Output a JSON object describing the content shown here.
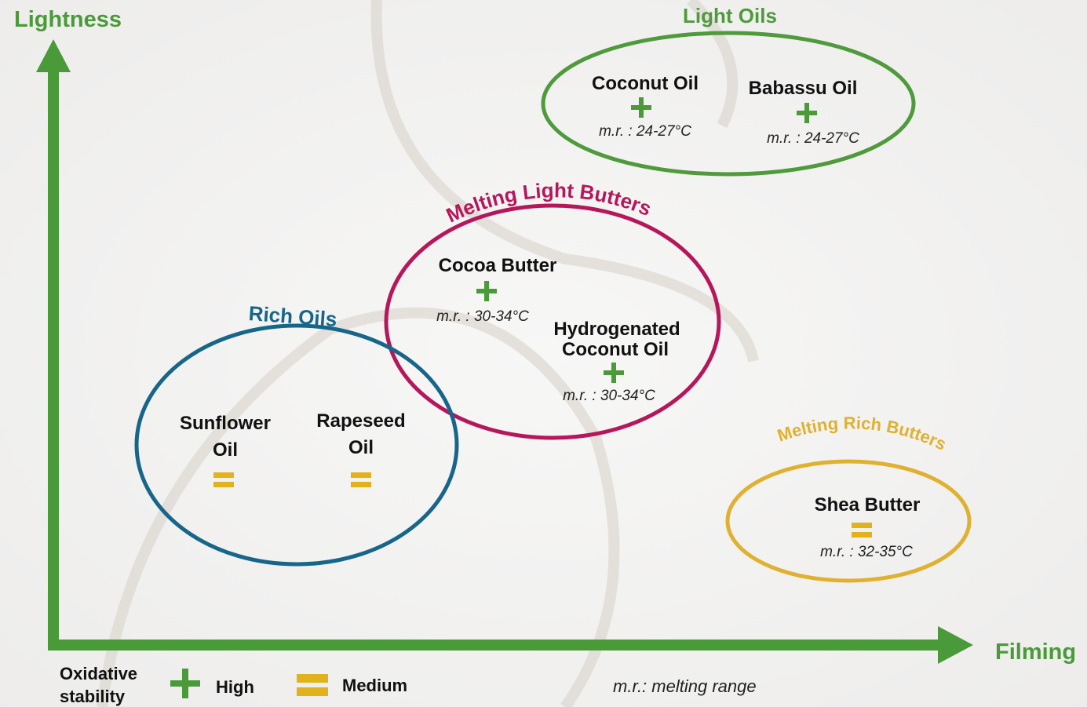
{
  "axes": {
    "y_label": "Lightness",
    "x_label": "Filming"
  },
  "groups": [
    {
      "label": "Light Oils",
      "items": [
        {
          "lines": [
            "Coconut Oil"
          ],
          "range": "m.r. : 24-27°C"
        },
        {
          "lines": [
            "Babassu Oil"
          ],
          "range": "m.r. : 24-27°C"
        }
      ]
    },
    {
      "label": "Melting Light Butters",
      "items": [
        {
          "lines": [
            "Cocoa Butter"
          ],
          "range": "m.r. : 30-34°C"
        },
        {
          "lines": [
            "Hydrogenated",
            "Coconut  Oil"
          ],
          "range": "m.r. : 30-34°C"
        }
      ]
    },
    {
      "label": "Rich Oils",
      "items": [
        {
          "lines": [
            "Sunflower",
            "Oil"
          ]
        },
        {
          "lines": [
            "Rapeseed",
            "Oil"
          ]
        }
      ]
    },
    {
      "label": "Melting Rich Butters",
      "items": [
        {
          "lines": [
            "Shea Butter"
          ],
          "range": "m.r. : 32-35°C"
        }
      ]
    }
  ],
  "legend": {
    "title": [
      "Oxidative",
      "stability"
    ],
    "high": "High",
    "medium": "Medium",
    "note": "m.r.:  melting range"
  }
}
